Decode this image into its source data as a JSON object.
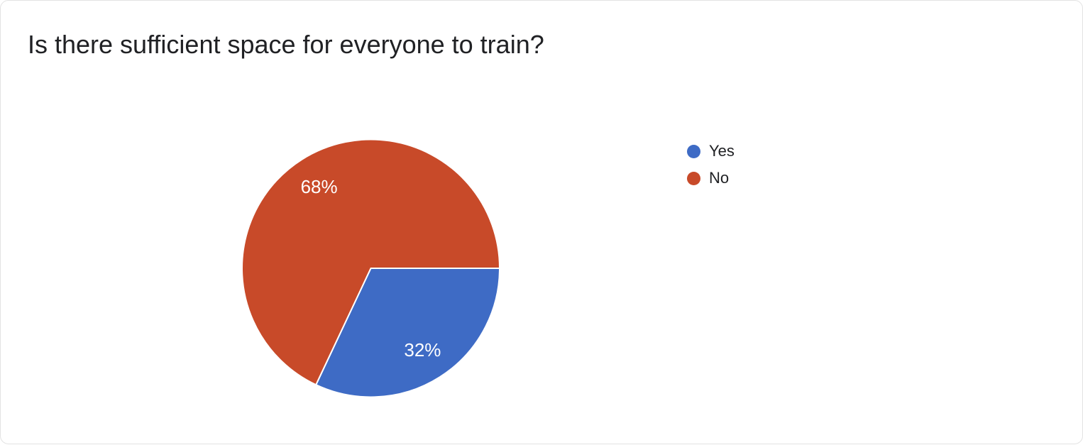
{
  "chart_data": {
    "type": "pie",
    "title": "Is there sufficient space for everyone to train?",
    "labels": [
      "Yes",
      "No"
    ],
    "values": [
      32,
      68
    ],
    "value_labels": [
      "32%",
      "68%"
    ],
    "colors": [
      "#3E6BC5",
      "#C84A29"
    ],
    "slice_border_color": "#ffffff",
    "slice_label_color": "#ffffff",
    "text_color": "#202124",
    "background_color": "#ffffff",
    "legend_position": "right",
    "start_at": "3-oclock",
    "direction": "clockwise"
  }
}
